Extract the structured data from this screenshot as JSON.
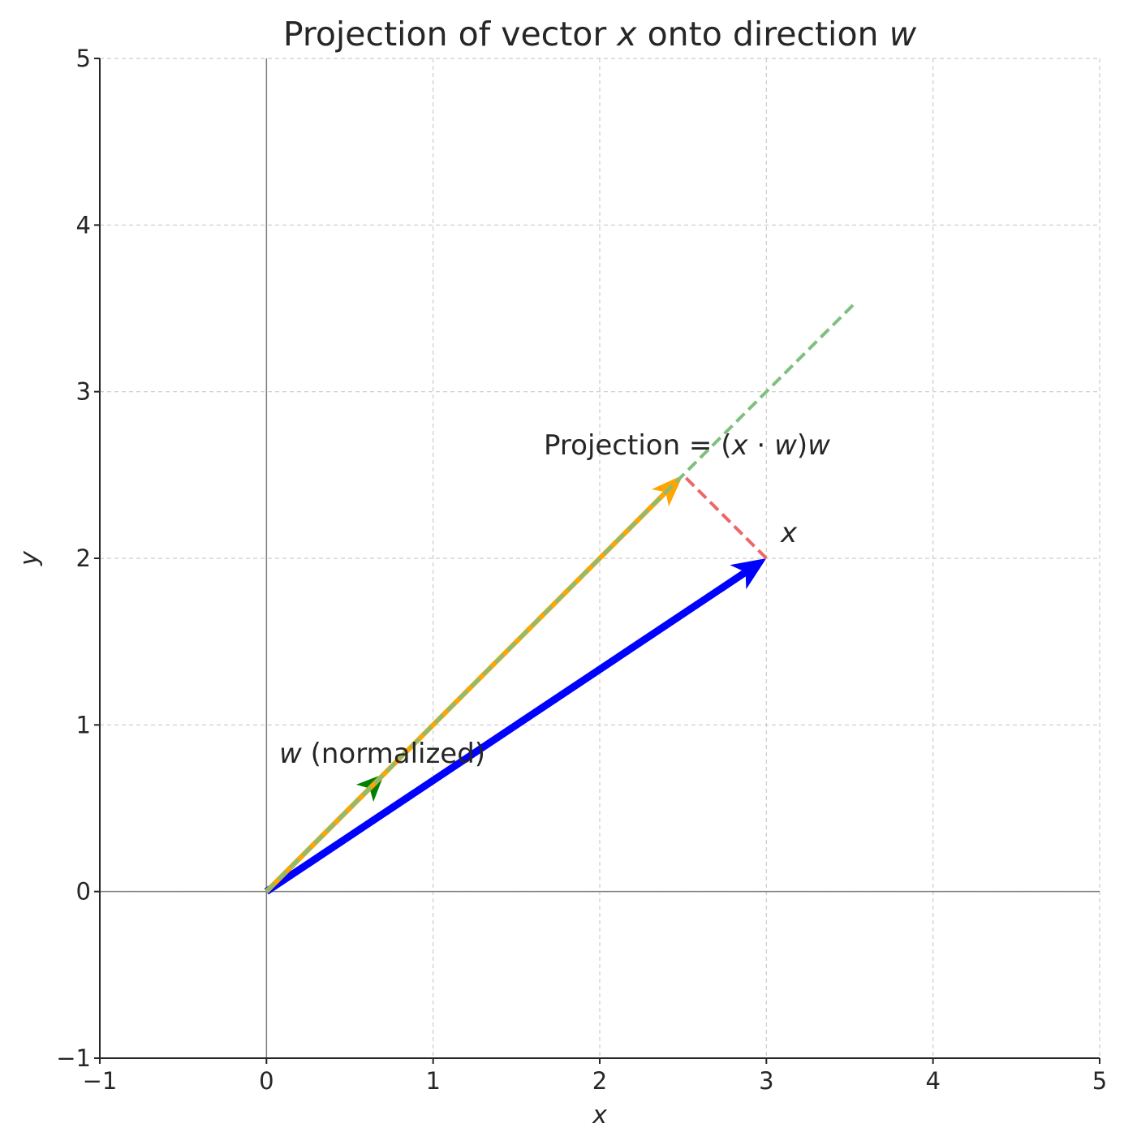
{
  "chart_data": {
    "type": "vector-plot",
    "title": {
      "prefix": "Projection of vector ",
      "var1": "x",
      "middle": " onto direction ",
      "var2": "w"
    },
    "xlabel": "x",
    "ylabel": "y",
    "xlim": [
      -1,
      5
    ],
    "ylim": [
      -1,
      5
    ],
    "xticks": [
      "−1",
      "0",
      "1",
      "2",
      "3",
      "4",
      "5"
    ],
    "yticks": [
      "−1",
      "0",
      "1",
      "2",
      "3",
      "4",
      "5"
    ],
    "grid": true,
    "colors": {
      "x_vector": "#0000ff",
      "w_vector": "#008000",
      "projection": "#ffa500",
      "perpendicular": "#ee6666",
      "direction_line": "#7fbf7f",
      "axes": "#262626",
      "zero_lines": "#808080",
      "grid": "#cccccc"
    },
    "vectors": {
      "x": {
        "label": "x",
        "start": [
          0,
          0
        ],
        "end": [
          3,
          2
        ]
      },
      "w": {
        "label_var": "w",
        "label_rest": " (normalized)",
        "start": [
          0,
          0
        ],
        "end": [
          0.707,
          0.707
        ]
      },
      "projection": {
        "label_prefix": "Projection = (",
        "label_x": "x",
        "label_dot": " · ",
        "label_w": "w",
        "label_close": ")",
        "label_w2": "w",
        "start": [
          0,
          0
        ],
        "end": [
          2.5,
          2.5
        ]
      }
    },
    "direction_line": {
      "start": [
        0,
        0
      ],
      "end": [
        3.54,
        3.54
      ]
    },
    "perpendicular": {
      "start": [
        3,
        2
      ],
      "end": [
        2.5,
        2.5
      ]
    }
  }
}
